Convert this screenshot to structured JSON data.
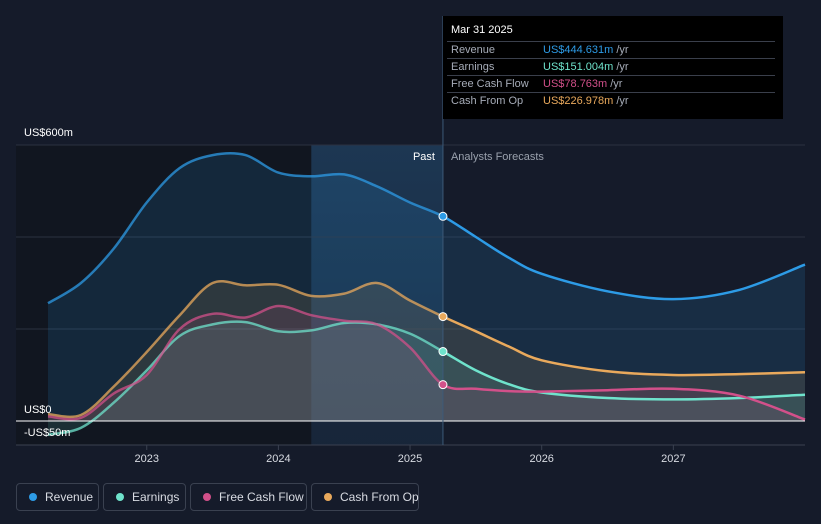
{
  "tooltip": {
    "date": "Mar 31 2025",
    "rows": [
      {
        "label": "Revenue",
        "value": "US$444.631m",
        "unit": "/yr",
        "color": "#2d9be6"
      },
      {
        "label": "Earnings",
        "value": "US$151.004m",
        "unit": "/yr",
        "color": "#6fe3cc"
      },
      {
        "label": "Free Cash Flow",
        "value": "US$78.763m",
        "unit": "/yr",
        "color": "#d2508a"
      },
      {
        "label": "Cash From Op",
        "value": "US$226.978m",
        "unit": "/yr",
        "color": "#e9a95c"
      }
    ]
  },
  "legend": [
    {
      "label": "Revenue",
      "color": "#2d9be6"
    },
    {
      "label": "Earnings",
      "color": "#6fe3cc"
    },
    {
      "label": "Free Cash Flow",
      "color": "#d2508a"
    },
    {
      "label": "Cash From Op",
      "color": "#e9a95c"
    }
  ],
  "chart_data": {
    "type": "area",
    "title": "",
    "xlabel": "",
    "ylabel": "",
    "x_range": [
      2022.25,
      2028.0
    ],
    "ylim": [
      -50,
      600
    ],
    "y_tick_labels": [
      {
        "value": 600,
        "label": "US$600m"
      },
      {
        "value": 0,
        "label": "US$0"
      },
      {
        "value": -50,
        "label": "-US$50m"
      }
    ],
    "x_ticks": [
      2023,
      2024,
      2025,
      2026,
      2027
    ],
    "x_tick_labels": [
      "2023",
      "2024",
      "2025",
      "2026",
      "2027"
    ],
    "divider_x": 2025.25,
    "highlight_start_x": 2024.25,
    "past_label": "Past",
    "forecast_label": "Analysts Forecasts",
    "series": [
      {
        "name": "Revenue",
        "color": "#2d9be6",
        "x": [
          2022.25,
          2022.5,
          2022.75,
          2023.0,
          2023.25,
          2023.5,
          2023.75,
          2024.0,
          2024.25,
          2024.5,
          2024.75,
          2025.0,
          2025.25,
          2025.5,
          2025.75,
          2026.0,
          2026.5,
          2027.0,
          2027.5,
          2028.0
        ],
        "values": [
          256,
          300,
          375,
          475,
          550,
          578,
          578,
          540,
          532,
          536,
          510,
          475,
          445,
          400,
          355,
          320,
          282,
          265,
          285,
          340
        ]
      },
      {
        "name": "Earnings",
        "color": "#6fe3cc",
        "x": [
          2022.25,
          2022.5,
          2022.75,
          2023.0,
          2023.25,
          2023.5,
          2023.75,
          2024.0,
          2024.25,
          2024.5,
          2024.75,
          2025.0,
          2025.25,
          2025.5,
          2025.75,
          2026.0,
          2026.5,
          2027.0,
          2027.5,
          2028.0
        ],
        "values": [
          -30,
          -15,
          40,
          110,
          185,
          210,
          215,
          195,
          197,
          213,
          210,
          190,
          151,
          110,
          80,
          62,
          50,
          47,
          50,
          57
        ]
      },
      {
        "name": "Free Cash Flow",
        "color": "#d2508a",
        "x": [
          2022.25,
          2022.5,
          2022.75,
          2023.0,
          2023.25,
          2023.5,
          2023.75,
          2024.0,
          2024.25,
          2024.5,
          2024.75,
          2025.0,
          2025.25,
          2025.5,
          2025.75,
          2026.0,
          2026.5,
          2027.0,
          2027.5,
          2028.0
        ],
        "values": [
          10,
          7,
          60,
          100,
          200,
          233,
          225,
          250,
          230,
          218,
          210,
          160,
          79,
          70,
          65,
          64,
          67,
          70,
          55,
          3
        ]
      },
      {
        "name": "Cash From Op",
        "color": "#e9a95c",
        "x": [
          2022.25,
          2022.5,
          2022.75,
          2023.0,
          2023.25,
          2023.5,
          2023.75,
          2024.0,
          2024.25,
          2024.5,
          2024.75,
          2025.0,
          2025.25,
          2025.5,
          2025.75,
          2026.0,
          2026.5,
          2027.0,
          2027.5,
          2028.0
        ],
        "values": [
          15,
          13,
          75,
          150,
          230,
          300,
          295,
          296,
          272,
          277,
          300,
          262,
          227,
          195,
          162,
          132,
          108,
          100,
          102,
          106
        ]
      }
    ]
  }
}
